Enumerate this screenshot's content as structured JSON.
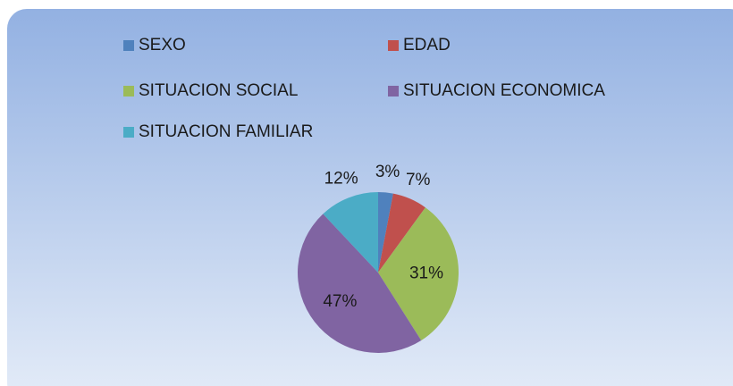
{
  "chart_data": {
    "type": "pie",
    "categories": [
      "SEXO",
      "EDAD",
      "SITUACION SOCIAL",
      "SITUACION ECONOMICA",
      "SITUACION FAMILIAR"
    ],
    "values": [
      3,
      7,
      31,
      47,
      12
    ],
    "value_labels": [
      "3%",
      "7%",
      "31%",
      "47%",
      "12%"
    ],
    "colors": [
      "#4f81bd",
      "#c0504d",
      "#9bbb59",
      "#8064a2",
      "#4bacc6"
    ],
    "legend": "top"
  }
}
